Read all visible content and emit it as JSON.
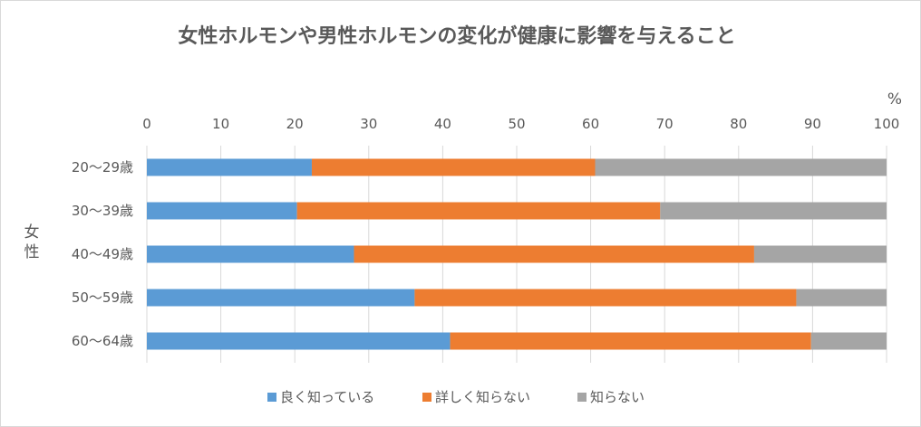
{
  "chart_data": {
    "type": "bar",
    "orientation": "horizontal",
    "stacked": true,
    "title": "女性ホルモンや男性ホルモンの変化が健康に影響を与えること",
    "xlabel": "%",
    "ylabel": "女性",
    "xlim": [
      0,
      100
    ],
    "xticks": [
      0,
      10,
      20,
      30,
      40,
      50,
      60,
      70,
      80,
      90,
      100
    ],
    "x_axis_position": "top",
    "grid": true,
    "legend": "bottom",
    "categories": [
      "20～29歳",
      "30～39歳",
      "40～49歳",
      "50～59歳",
      "60～64歳"
    ],
    "series": [
      {
        "name": "良く知っている",
        "color": "#5b9bd5",
        "values": [
          22.3,
          20.3,
          28.0,
          36.2,
          41.0
        ]
      },
      {
        "name": "詳しく知らない",
        "color": "#ed7d31",
        "values": [
          38.3,
          49.1,
          54.1,
          51.6,
          48.8
        ]
      },
      {
        "name": "知らない",
        "color": "#a5a5a5",
        "values": [
          39.4,
          30.6,
          17.9,
          12.2,
          10.2
        ]
      }
    ]
  }
}
